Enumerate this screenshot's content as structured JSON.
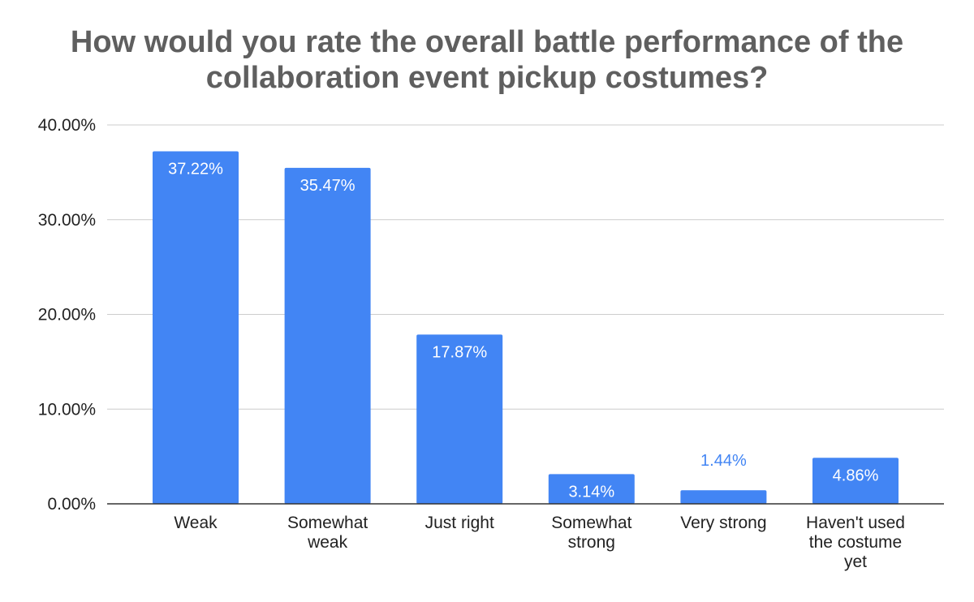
{
  "chart_data": {
    "type": "bar",
    "title": "How would you rate the overall battle performance of the collaboration event pickup costumes?",
    "categories": [
      [
        "Weak"
      ],
      [
        "Somewhat",
        "weak"
      ],
      [
        "Just right"
      ],
      [
        "Somewhat",
        "strong"
      ],
      [
        "Very strong"
      ],
      [
        "Haven't used",
        "the costume",
        "yet"
      ]
    ],
    "values": [
      37.22,
      35.47,
      17.87,
      3.14,
      1.44,
      4.86
    ],
    "data_labels": [
      "37.22%",
      "35.47%",
      "17.87%",
      "3.14%",
      "1.44%",
      "4.86%"
    ],
    "y_ticks": [
      0,
      10,
      20,
      30,
      40
    ],
    "y_tick_labels": [
      "0.00%",
      "10.00%",
      "20.00%",
      "30.00%",
      "40.00%"
    ],
    "ylim": [
      0,
      40
    ],
    "grid": true,
    "xlabel": "",
    "ylabel": "",
    "legend": "none",
    "colors": {
      "bar": "#4285f4",
      "label_inside": "#ffffff",
      "label_outside": "#4285f4",
      "gridline": "#cccccc",
      "axis": "#333333",
      "title": "#5f5f5f"
    }
  }
}
